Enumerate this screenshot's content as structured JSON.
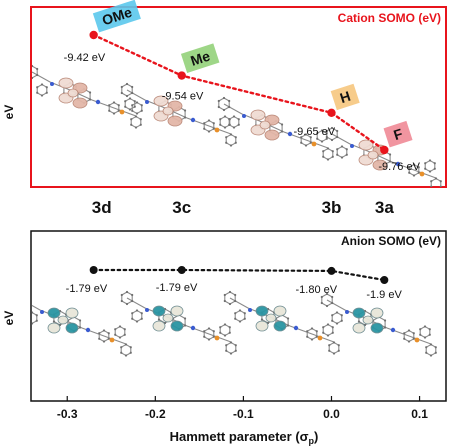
{
  "chart_data": [
    {
      "type": "scatter",
      "title": "Cation SOMO (eV)",
      "ylabel": "eV",
      "title_color": "#e8141c",
      "line_color": "#e8141c",
      "frame_color": "#e8141c",
      "line_style": "dotted",
      "grid": false,
      "legend": "none",
      "x": [
        -0.27,
        -0.17,
        0.0,
        0.06
      ],
      "y": [
        -9.42,
        -9.54,
        -9.65,
        -9.76
      ],
      "point_labels": [
        "-9.42 eV",
        "-9.54 eV",
        "-9.65 eV",
        "-9.76 eV"
      ],
      "substituents": [
        {
          "text": "OMe",
          "color": "#5bc8ec"
        },
        {
          "text": "Me",
          "color": "#93d17a"
        },
        {
          "text": "H",
          "color": "#f6c77e"
        },
        {
          "text": "F",
          "color": "#ef8a96"
        }
      ],
      "compound_labels": [
        "3d",
        "3c",
        "3b",
        "3a"
      ]
    },
    {
      "type": "scatter",
      "title": "Anion SOMO (eV)",
      "ylabel": "eV",
      "title_color": "#111111",
      "line_color": "#111111",
      "frame_color": "#111111",
      "line_style": "dotted",
      "grid": false,
      "legend": "none",
      "x": [
        -0.27,
        -0.17,
        0.0,
        0.06
      ],
      "y": [
        -1.79,
        -1.79,
        -1.8,
        -1.9
      ],
      "point_labels": [
        "-1.79 eV",
        "-1.79 eV",
        "-1.80 eV",
        "-1.9 eV"
      ],
      "xlabel": "Hammett parameter (σp)",
      "xlim": [
        -0.34,
        0.13
      ],
      "xticks": [
        -0.3,
        -0.2,
        -0.1,
        0.0,
        0.1
      ],
      "xtick_labels": [
        "-0.3",
        "-0.2",
        "-0.1",
        "0.0",
        "0.1"
      ]
    }
  ],
  "xlabel_main": "Hammett parameter (σ",
  "xlabel_sub": "p",
  "xlabel_close": ")",
  "orbital_colors": {
    "cation_lobe": "#e3b7a8",
    "cation_lobe_dark": "#b88574",
    "anion_lobe": "#2a95a3",
    "anion_lobe_light": "#e8e6da",
    "molecule": "#8a8a8a",
    "atom_n": "#3a5bd0",
    "atom_p": "#e8902a"
  }
}
